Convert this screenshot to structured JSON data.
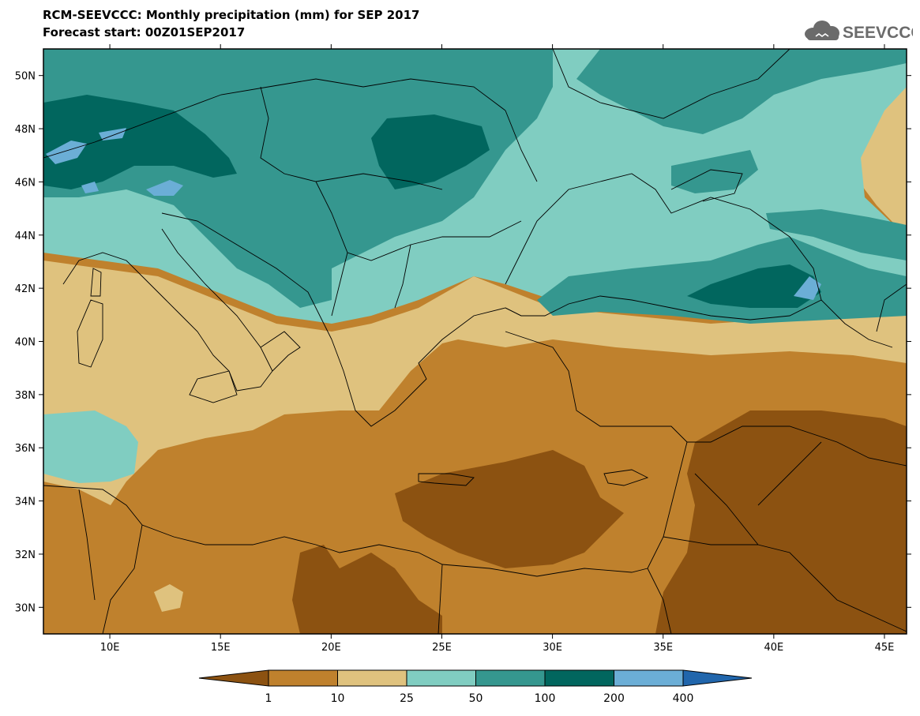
{
  "header": {
    "title": "RCM-SEEVCCC: Monthly precipitation (mm) for SEP 2017",
    "subtitle": "Forecast start: 00Z01SEP2017",
    "logo_text": "SEEVCCC"
  },
  "map": {
    "projection": "lat-lon",
    "lon_range": [
      7,
      46
    ],
    "lat_range": [
      29,
      51
    ],
    "lat_ticks": [
      {
        "value": 50,
        "label": "50N"
      },
      {
        "value": 48,
        "label": "48N"
      },
      {
        "value": 46,
        "label": "46N"
      },
      {
        "value": 44,
        "label": "44N"
      },
      {
        "value": 42,
        "label": "42N"
      },
      {
        "value": 40,
        "label": "40N"
      },
      {
        "value": 38,
        "label": "38N"
      },
      {
        "value": 36,
        "label": "36N"
      },
      {
        "value": 34,
        "label": "34N"
      },
      {
        "value": 32,
        "label": "32N"
      },
      {
        "value": 30,
        "label": "30N"
      }
    ],
    "lon_ticks": [
      {
        "value": 10,
        "label": "10E"
      },
      {
        "value": 15,
        "label": "15E"
      },
      {
        "value": 20,
        "label": "20E"
      },
      {
        "value": 25,
        "label": "25E"
      },
      {
        "value": 30,
        "label": "30E"
      },
      {
        "value": 35,
        "label": "35E"
      },
      {
        "value": 40,
        "label": "40E"
      },
      {
        "value": 45,
        "label": "45E"
      }
    ]
  },
  "colorbar": {
    "labels": [
      "1",
      "10",
      "25",
      "50",
      "100",
      "200",
      "400"
    ],
    "colors": [
      "#8c5211",
      "#bf812d",
      "#dfc27e",
      "#80cdc1",
      "#35978f",
      "#01665e",
      "#6baed6",
      "#2166ac"
    ]
  }
}
